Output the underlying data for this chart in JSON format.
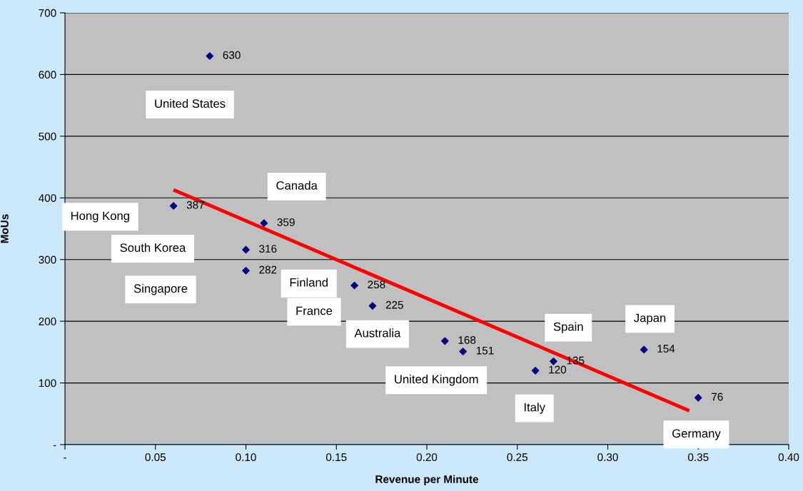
{
  "chart_data": {
    "type": "scatter",
    "xlabel": "Revenue per Minute",
    "ylabel": "MoUs",
    "x": [
      0.08,
      0.06,
      0.11,
      0.1,
      0.1,
      0.16,
      0.17,
      0.21,
      0.22,
      0.26,
      0.27,
      0.32,
      0.35
    ],
    "series": [
      {
        "color": "#000080",
        "marker": "diamond",
        "values": [
          630,
          387,
          359,
          316,
          282,
          258,
          225,
          168,
          151,
          120,
          135,
          154,
          76
        ],
        "value_labels": [
          "630",
          "387",
          "359",
          "316",
          "282",
          "258",
          "225",
          "168",
          "151",
          "120",
          "135",
          "154",
          "76"
        ]
      },
      {
        "type": "line",
        "color": "#ff0000",
        "marker": "none",
        "line_style": "solid",
        "x": [
          0.06,
          0.345
        ],
        "values": [
          413,
          55
        ]
      }
    ],
    "annotations": [
      "United States",
      "Hong Kong",
      "Canada",
      "South Korea",
      "Singapore",
      "Finland",
      "France",
      "Australia",
      "United Kingdom",
      "Italy",
      "Spain",
      "Japan",
      "Germany"
    ],
    "xlim": [
      0,
      0.4
    ],
    "xticks": [
      {
        "value": 0,
        "label": "-"
      },
      0.05,
      {
        "value": 0.1,
        "label": "0.10"
      },
      0.15,
      {
        "value": 0.2,
        "label": "0.20"
      },
      0.25,
      {
        "value": 0.3,
        "label": "0.30"
      },
      0.35,
      {
        "value": 0.4,
        "label": "0.40"
      }
    ],
    "ylim": [
      0,
      700
    ],
    "yticks": [
      {
        "value": 0,
        "label": "-"
      },
      100,
      200,
      300,
      400,
      500,
      600,
      700
    ],
    "grid": "y",
    "legend": false
  }
}
